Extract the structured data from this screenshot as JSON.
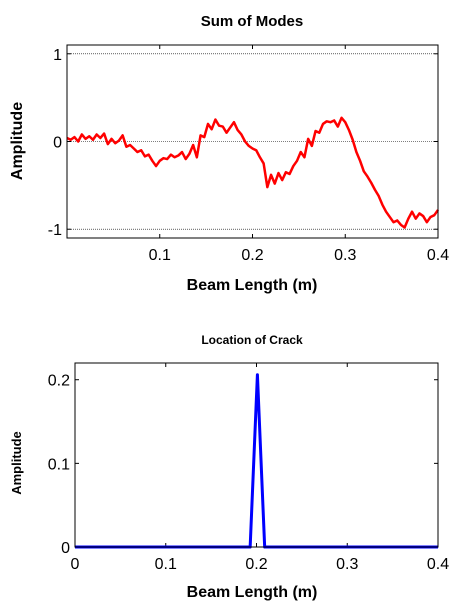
{
  "chart_data": [
    {
      "type": "line",
      "title": "Sum of Modes",
      "xlabel": "Beam Length (m)",
      "ylabel": "Amplitude",
      "xlim": [
        0,
        0.4
      ],
      "ylim": [
        -1.1,
        1.1
      ],
      "xticks": [
        0.1,
        0.2,
        0.3,
        0.4
      ],
      "xtick_labels": [
        "0.1",
        "0.2",
        "0.3",
        "0.4"
      ],
      "yticks": [
        -1,
        0,
        1
      ],
      "ytick_labels": [
        "-1",
        "0",
        "1"
      ],
      "grid": "y-only",
      "series": [
        {
          "color": "#ff0000",
          "x": [
            0,
            0.004,
            0.008,
            0.012,
            0.016,
            0.02,
            0.024,
            0.028,
            0.032,
            0.036,
            0.04,
            0.044,
            0.048,
            0.052,
            0.056,
            0.06,
            0.064,
            0.068,
            0.072,
            0.076,
            0.08,
            0.084,
            0.088,
            0.092,
            0.096,
            0.1,
            0.104,
            0.108,
            0.112,
            0.116,
            0.12,
            0.124,
            0.128,
            0.132,
            0.136,
            0.14,
            0.144,
            0.148,
            0.152,
            0.156,
            0.16,
            0.164,
            0.168,
            0.172,
            0.176,
            0.18,
            0.184,
            0.188,
            0.192,
            0.196,
            0.2,
            0.204,
            0.208,
            0.212,
            0.216,
            0.22,
            0.224,
            0.228,
            0.232,
            0.236,
            0.24,
            0.244,
            0.248,
            0.252,
            0.256,
            0.26,
            0.264,
            0.268,
            0.272,
            0.276,
            0.28,
            0.284,
            0.288,
            0.292,
            0.296,
            0.3,
            0.304,
            0.308,
            0.312,
            0.316,
            0.32,
            0.324,
            0.328,
            0.332,
            0.336,
            0.34,
            0.344,
            0.348,
            0.352,
            0.356,
            0.36,
            0.364,
            0.368,
            0.372,
            0.376,
            0.38,
            0.384,
            0.388,
            0.392,
            0.396,
            0.4
          ],
          "y": [
            0.04,
            0.02,
            0.05,
            0.0,
            0.08,
            0.03,
            0.06,
            0.02,
            0.08,
            0.04,
            0.09,
            -0.03,
            0.03,
            -0.02,
            0.01,
            0.07,
            -0.06,
            -0.04,
            -0.08,
            -0.12,
            -0.1,
            -0.17,
            -0.15,
            -0.22,
            -0.28,
            -0.22,
            -0.19,
            -0.2,
            -0.15,
            -0.18,
            -0.16,
            -0.12,
            -0.2,
            -0.14,
            -0.04,
            -0.18,
            0.07,
            0.05,
            0.2,
            0.14,
            0.25,
            0.18,
            0.17,
            0.1,
            0.16,
            0.22,
            0.13,
            0.08,
            0.0,
            -0.05,
            -0.08,
            -0.1,
            -0.18,
            -0.25,
            -0.52,
            -0.38,
            -0.48,
            -0.36,
            -0.44,
            -0.35,
            -0.37,
            -0.28,
            -0.22,
            -0.12,
            -0.18,
            0.03,
            -0.05,
            0.12,
            0.1,
            0.2,
            0.23,
            0.22,
            0.24,
            0.17,
            0.27,
            0.22,
            0.13,
            0.02,
            -0.12,
            -0.22,
            -0.34,
            -0.4,
            -0.47,
            -0.55,
            -0.62,
            -0.72,
            -0.8,
            -0.86,
            -0.92,
            -0.9,
            -0.95,
            -0.98,
            -0.88,
            -0.8,
            -0.88,
            -0.82,
            -0.85,
            -0.92,
            -0.86,
            -0.84,
            -0.78
          ]
        }
      ]
    },
    {
      "type": "line",
      "title": "Location of Crack",
      "xlabel": "Beam Length (m)",
      "ylabel": "Amplitude",
      "xlim": [
        0,
        0.4
      ],
      "ylim": [
        0,
        0.22
      ],
      "xticks": [
        0,
        0.1,
        0.2,
        0.3,
        0.4
      ],
      "xtick_labels": [
        "0",
        "0.1",
        "0.2",
        "0.3",
        "0.4"
      ],
      "yticks": [
        0,
        0.1,
        0.2
      ],
      "ytick_labels": [
        "0",
        "0.1",
        "0.2"
      ],
      "grid": false,
      "series": [
        {
          "color": "#0000ff",
          "x": [
            0,
            0.193,
            0.201,
            0.209,
            0.4
          ],
          "y": [
            0,
            0,
            0.206,
            0,
            0
          ]
        }
      ]
    }
  ]
}
